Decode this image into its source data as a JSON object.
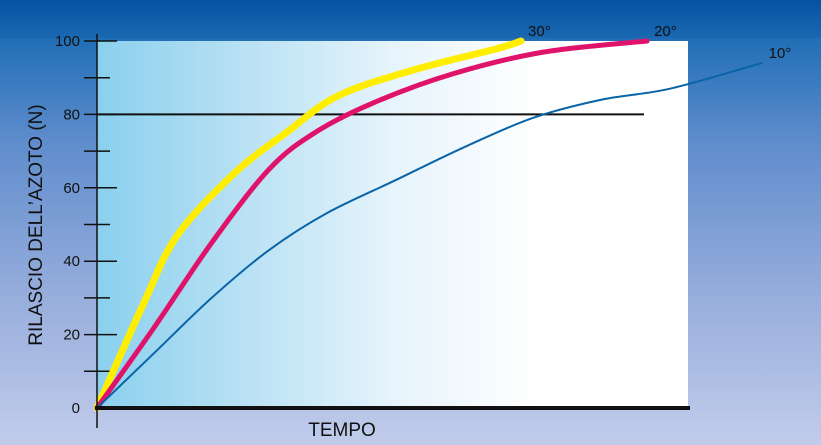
{
  "chart_data": {
    "type": "line",
    "title": "",
    "xlabel": "TEMPO",
    "ylabel": "RILASCIO DELL’AZOTO (N)",
    "ylim": [
      0,
      100
    ],
    "yticks": [
      "0",
      "20",
      "40",
      "60",
      "80",
      "100"
    ],
    "xlim": [
      0,
      100
    ],
    "grid": false,
    "reference_line": {
      "y": 80
    },
    "series": [
      {
        "name": "30°",
        "color": "#ffee00",
        "x": [
          0,
          8,
          14,
          24,
          33,
          42,
          55,
          70,
          74
        ],
        "y": [
          0,
          28,
          47,
          64,
          75,
          85,
          92,
          98,
          100
        ]
      },
      {
        "name": "20°",
        "color": "#e0136b",
        "x": [
          0,
          10,
          20,
          30,
          38,
          48,
          62,
          78,
          96
        ],
        "y": [
          0,
          22,
          45,
          65,
          75,
          83,
          91,
          97,
          100
        ]
      },
      {
        "name": "10°",
        "color": "#0a64a8",
        "x": [
          0,
          10,
          20,
          30,
          40,
          52,
          64,
          76,
          88,
          100,
          116
        ],
        "y": [
          0,
          15,
          30,
          43,
          53,
          62,
          71,
          79,
          84,
          87,
          94
        ]
      }
    ]
  }
}
